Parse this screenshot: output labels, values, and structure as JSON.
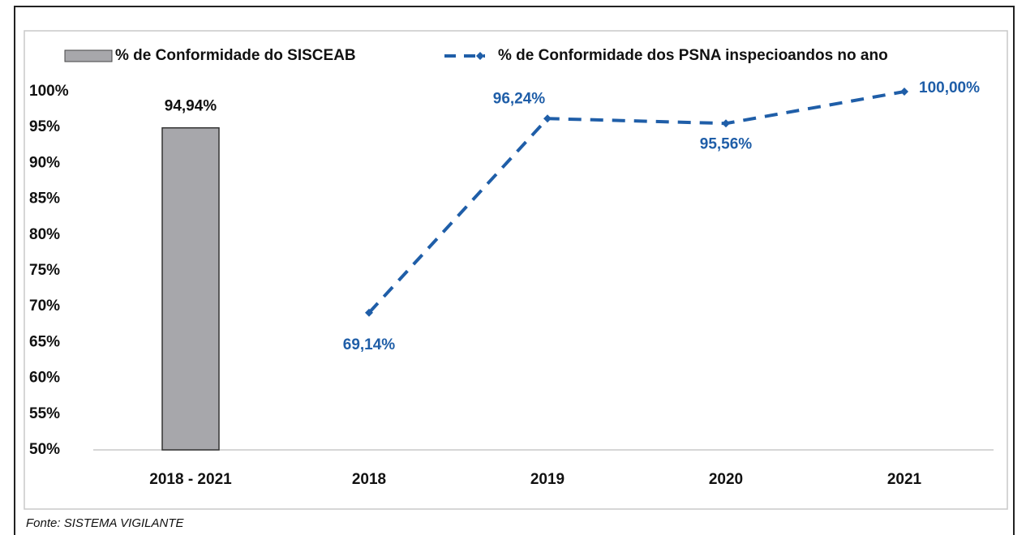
{
  "chart_data": {
    "type": "bar_line",
    "categories": [
      "2018 - 2021",
      "2018",
      "2019",
      "2020",
      "2021"
    ],
    "series": [
      {
        "name": "% de Conformidade do SISCEAB",
        "type": "bar",
        "color": "#a7a7ab",
        "values": [
          94.94,
          null,
          null,
          null,
          null
        ],
        "value_labels": [
          "94,94%",
          null,
          null,
          null,
          null
        ]
      },
      {
        "name": "% de Conformidade dos PSNA inspecioandos no ano",
        "type": "line",
        "color": "#1f5ea8",
        "values": [
          null,
          69.14,
          96.24,
          95.56,
          100.0
        ],
        "value_labels": [
          null,
          "69,14%",
          "96,24%",
          "95,56%",
          "100,00%"
        ]
      }
    ],
    "ylim": [
      50,
      100
    ],
    "yticks": [
      {
        "value": 50,
        "label": "50%"
      },
      {
        "value": 55,
        "label": "55%"
      },
      {
        "value": 60,
        "label": "60%"
      },
      {
        "value": 65,
        "label": "65%"
      },
      {
        "value": 70,
        "label": "70%"
      },
      {
        "value": 75,
        "label": "75%"
      },
      {
        "value": 80,
        "label": "80%"
      },
      {
        "value": 85,
        "label": "85%"
      },
      {
        "value": 90,
        "label": "90%"
      },
      {
        "value": 95,
        "label": "95%"
      },
      {
        "value": 100,
        "label": "100%"
      }
    ],
    "legend": "top",
    "source": "Fonte: SISTEMA VIGILANTE"
  }
}
